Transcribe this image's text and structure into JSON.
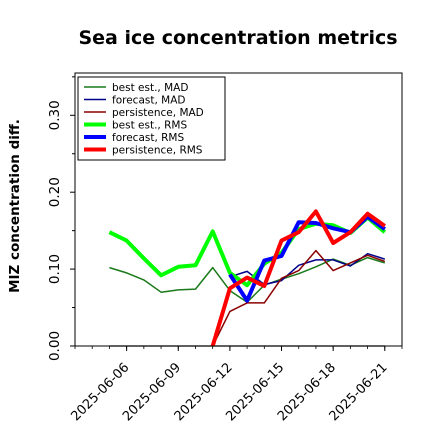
{
  "chart_data": {
    "type": "line",
    "title": "Sea ice concentration metrics",
    "xlabel": "",
    "ylabel": "MIZ concentration diff.",
    "ylim": [
      0.0,
      0.355
    ],
    "y_ticks": [
      "0.00",
      "0.10",
      "0.20",
      "0.30"
    ],
    "x_tick_labels": [
      "2025-06-06",
      "2025-06-09",
      "2025-06-12",
      "2025-06-15",
      "2025-06-18",
      "2025-06-21"
    ],
    "x_tick_colors": [
      "#000000",
      "#000000",
      "#228b22",
      "#000000",
      "#000000",
      "#000000"
    ],
    "x_range": [
      "2025-06-03",
      "2025-06-22"
    ],
    "grid": false,
    "legend_position": "top-left",
    "zero_line_color": "#808080",
    "series": [
      {
        "name": "best est., MAD",
        "color": "#1a7a1a",
        "style": "thin",
        "x": [
          "2025-06-05",
          "2025-06-06",
          "2025-06-07",
          "2025-06-08",
          "2025-06-09",
          "2025-06-10",
          "2025-06-11",
          "2025-06-12",
          "2025-06-13",
          "2025-06-14",
          "2025-06-15",
          "2025-06-16",
          "2025-06-17",
          "2025-06-18",
          "2025-06-19",
          "2025-06-20",
          "2025-06-21"
        ],
        "values": [
          0.102,
          0.095,
          0.086,
          0.07,
          0.073,
          0.074,
          0.102,
          0.072,
          0.057,
          0.079,
          0.087,
          0.094,
          0.103,
          0.113,
          0.105,
          0.115,
          0.108
        ]
      },
      {
        "name": "forecast,  MAD",
        "color": "#00008b",
        "style": "thin",
        "x": [
          "2025-06-12",
          "2025-06-13",
          "2025-06-14",
          "2025-06-15",
          "2025-06-16",
          "2025-06-17",
          "2025-06-18",
          "2025-06-19",
          "2025-06-20",
          "2025-06-21"
        ],
        "values": [
          0.09,
          0.097,
          0.08,
          0.085,
          0.105,
          0.112,
          0.112,
          0.104,
          0.12,
          0.113
        ]
      },
      {
        "name": "persistence, MAD",
        "color": "#8b0000",
        "style": "thin",
        "x": [
          "2025-06-11",
          "2025-06-12",
          "2025-06-13",
          "2025-06-14",
          "2025-06-15",
          "2025-06-16",
          "2025-06-17",
          "2025-06-18",
          "2025-06-19",
          "2025-06-20",
          "2025-06-21"
        ],
        "values": [
          0.0,
          0.045,
          0.056,
          0.056,
          0.088,
          0.098,
          0.124,
          0.098,
          0.108,
          0.118,
          0.11
        ]
      },
      {
        "name": "best est., RMS",
        "color": "#00ff00",
        "style": "thick",
        "x": [
          "2025-06-05",
          "2025-06-06",
          "2025-06-07",
          "2025-06-08",
          "2025-06-09",
          "2025-06-10",
          "2025-06-11",
          "2025-06-12",
          "2025-06-13",
          "2025-06-14",
          "2025-06-15",
          "2025-06-16",
          "2025-06-17",
          "2025-06-18",
          "2025-06-19",
          "2025-06-20",
          "2025-06-21"
        ],
        "values": [
          0.148,
          0.137,
          0.114,
          0.092,
          0.103,
          0.105,
          0.149,
          0.095,
          0.079,
          0.107,
          0.121,
          0.152,
          0.159,
          0.157,
          0.147,
          0.167,
          0.148
        ]
      },
      {
        "name": "forecast,  RMS",
        "color": "#0000ff",
        "style": "thick",
        "x": [
          "2025-06-12",
          "2025-06-13",
          "2025-06-14",
          "2025-06-15",
          "2025-06-16",
          "2025-06-17",
          "2025-06-18",
          "2025-06-19",
          "2025-06-20",
          "2025-06-21"
        ],
        "values": [
          0.093,
          0.059,
          0.111,
          0.117,
          0.161,
          0.16,
          0.153,
          0.148,
          0.168,
          0.152
        ]
      },
      {
        "name": "persistence, RMS",
        "color": "#ff0000",
        "style": "thick",
        "x": [
          "2025-06-11",
          "2025-06-12",
          "2025-06-13",
          "2025-06-14",
          "2025-06-15",
          "2025-06-16",
          "2025-06-17",
          "2025-06-18",
          "2025-06-19",
          "2025-06-20",
          "2025-06-21"
        ],
        "values": [
          0.0,
          0.075,
          0.089,
          0.078,
          0.137,
          0.148,
          0.175,
          0.134,
          0.148,
          0.172,
          0.156
        ]
      }
    ]
  }
}
